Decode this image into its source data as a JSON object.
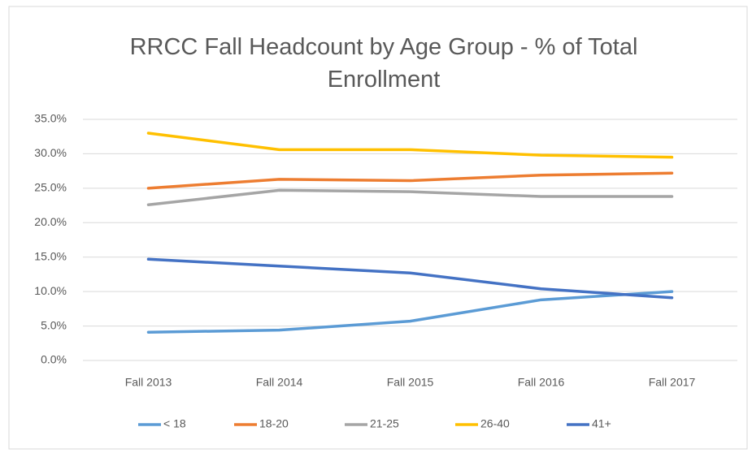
{
  "chart_data": {
    "type": "line",
    "title": "RRCC Fall Headcount by Age Group - % of Total Enrollment",
    "categories": [
      "Fall 2013",
      "Fall 2014",
      "Fall 2015",
      "Fall 2016",
      "Fall 2017"
    ],
    "series": [
      {
        "name": "< 18",
        "color": "#5b9bd5",
        "values": [
          4.1,
          4.4,
          5.7,
          8.8,
          10.0
        ]
      },
      {
        "name": "18-20",
        "color": "#ed7d31",
        "values": [
          25.0,
          26.3,
          26.1,
          26.9,
          27.2
        ]
      },
      {
        "name": "21-25",
        "color": "#a5a5a5",
        "values": [
          22.6,
          24.7,
          24.5,
          23.8,
          23.8
        ]
      },
      {
        "name": "26-40",
        "color": "#ffc000",
        "values": [
          33.0,
          30.6,
          30.6,
          29.8,
          29.5
        ]
      },
      {
        "name": "41+",
        "color": "#4472c4",
        "values": [
          14.7,
          13.7,
          12.7,
          10.4,
          9.1
        ]
      }
    ],
    "ylim": [
      0,
      35
    ],
    "yticks": [
      {
        "value": 0,
        "label": "0.0%"
      },
      {
        "value": 5,
        "label": "5.0%"
      },
      {
        "value": 10,
        "label": "10.0%"
      },
      {
        "value": 15,
        "label": "15.0%"
      },
      {
        "value": 20,
        "label": "20.0%"
      },
      {
        "value": 25,
        "label": "25.0%"
      },
      {
        "value": 30,
        "label": "30.0%"
      },
      {
        "value": 35,
        "label": "35.0%"
      }
    ],
    "grid": true
  }
}
